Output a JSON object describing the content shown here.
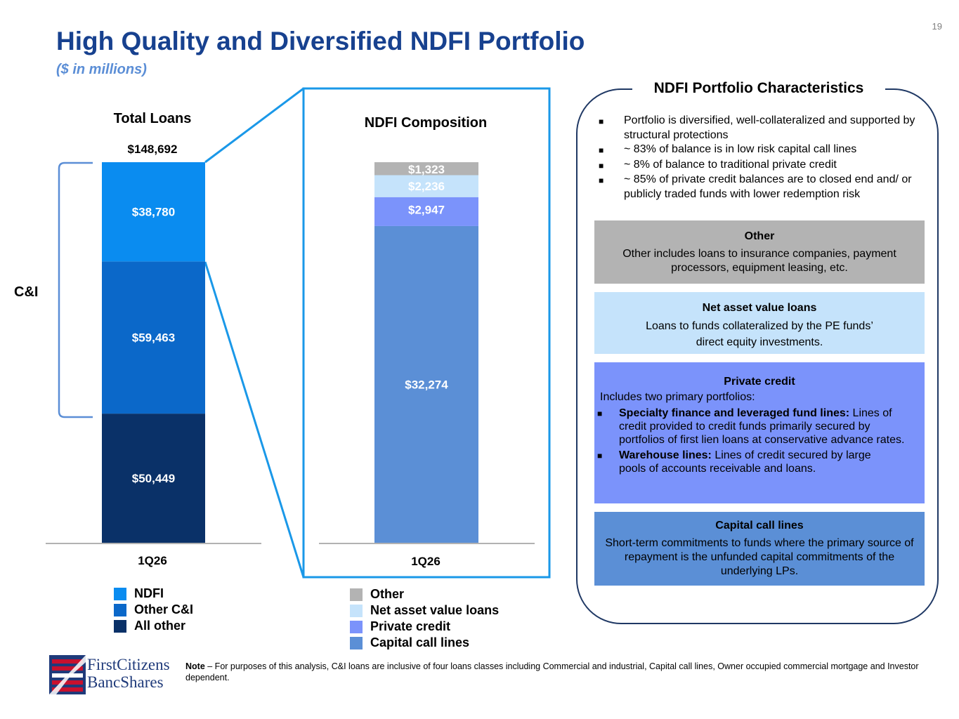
{
  "page_number": "19",
  "title": "High Quality and Diversified NDFI Portfolio",
  "subtitle": "($ in millions)",
  "brace_label": "C&I",
  "colors": {
    "ndfi": "#0a8cf0",
    "other_ci": "#0b68c9",
    "all_other": "#0a3168",
    "other": "#b3b3b3",
    "nav_loans": "#c5e3fb",
    "private_credit": "#7b93fb",
    "capital_call": "#5b8fd6",
    "connector": "#1a98e8",
    "brace": "#5b8ed6",
    "title": "#17418f"
  },
  "chart_data": [
    {
      "type": "bar",
      "stacked": true,
      "title": "Total Loans",
      "total_label": "$148,692",
      "categories": [
        "1Q26"
      ],
      "series": [
        {
          "name": "All other",
          "values": [
            50449
          ],
          "label": "$50,449"
        },
        {
          "name": "Other C&I",
          "values": [
            59463
          ],
          "label": "$59,463"
        },
        {
          "name": "NDFI",
          "values": [
            38780
          ],
          "label": "$38,780"
        }
      ],
      "ylim": [
        0,
        148692
      ],
      "legend": [
        "NDFI",
        "Other C&I",
        "All other"
      ]
    },
    {
      "type": "bar",
      "stacked": true,
      "title": "NDFI Composition",
      "categories": [
        "1Q26"
      ],
      "series": [
        {
          "name": "Capital call lines",
          "values": [
            32274
          ],
          "label": "$32,274"
        },
        {
          "name": "Private credit",
          "values": [
            2947
          ],
          "label": "$2,947"
        },
        {
          "name": "Net asset value loans",
          "values": [
            2236
          ],
          "label": "$2,236"
        },
        {
          "name": "Other",
          "values": [
            1323
          ],
          "label": "$1,323"
        }
      ],
      "ylim": [
        0,
        38780
      ],
      "legend": [
        "Other",
        "Net asset value loans",
        "Private credit",
        "Capital call lines"
      ]
    }
  ],
  "characteristics": {
    "title": "NDFI Portfolio Characteristics",
    "bullets": [
      "Portfolio is diversified, well-collateralized and supported by structural protections",
      "~ 83% of balance is in low risk capital call lines",
      "~ 8% of balance to traditional private credit",
      "~ 85% of private credit balances are to closed end and/ or publicly traded funds with lower redemption risk"
    ],
    "bullet_glyph": "■",
    "boxes": {
      "other": {
        "title": "Other",
        "text": "Other includes loans to insurance companies, payment processors, equipment leasing, etc."
      },
      "nav": {
        "title": "Net asset value loans",
        "line1": "Loans to funds collateralized by the PE funds’",
        "line2": "direct equity investments."
      },
      "private_credit": {
        "title": "Private credit",
        "intro": "Includes two primary portfolios:",
        "items": [
          {
            "bold": "Specialty finance and leveraged fund lines:",
            "text": " Lines of credit provided to credit funds primarily secured by portfolios of first lien loans at conservative advance rates."
          },
          {
            "bold": "Warehouse lines:",
            "text": " Lines of credit secured by large pools of accounts receivable and loans."
          }
        ]
      },
      "capital_call": {
        "title": "Capital call lines",
        "text": "Short-term commitments to funds where the primary source of repayment is the unfunded capital commitments of the underlying LPs."
      }
    }
  },
  "logo": {
    "line1": "FirstCitizens",
    "line2": "BancShares",
    "icon": "flag-logo-icon"
  },
  "note": {
    "label": "Note",
    "text": " – For purposes of this analysis, C&I loans are inclusive of four loans classes including Commercial and industrial, Capital call lines, Owner occupied commercial mortgage and Investor dependent."
  }
}
